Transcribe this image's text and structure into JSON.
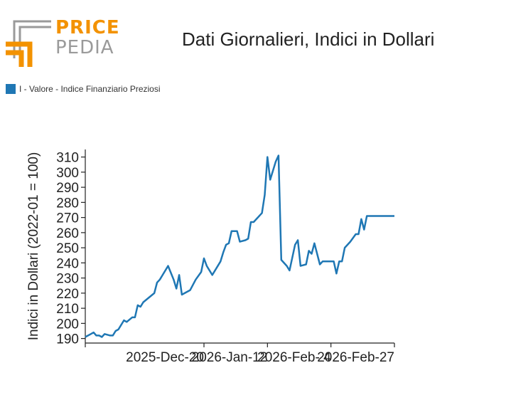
{
  "brand": {
    "word1": "PRICE",
    "word2": "PEDIA",
    "color_orange": "#f39200",
    "color_gray": "#9a9a9a"
  },
  "chart_data": {
    "type": "line",
    "title": "Dati Giornalieri, Indici in Dollari",
    "ylabel": "Indici in Dollari (2022-01 = 100)",
    "xlabel": "",
    "ylim": [
      187,
      315
    ],
    "yticks": [
      190,
      200,
      210,
      220,
      230,
      240,
      250,
      260,
      270,
      280,
      290,
      300,
      310
    ],
    "xlim": [
      "2025-11-07",
      "2026-02-27"
    ],
    "xticks": [
      {
        "date": "2025-12-20",
        "label": "2025-Dec-20"
      },
      {
        "date": "2026-01-12",
        "label": "2026-Jan-12"
      },
      {
        "date": "2026-02-04",
        "label": "2026-Feb- 4"
      },
      {
        "date": "2026-02-27",
        "label": "2026-Feb-27"
      }
    ],
    "legend_position": "top-left",
    "series": [
      {
        "name": "I - Valore - Indice Finanziario Preziosi",
        "color": "#1f77b4",
        "x": [
          "2025-11-07",
          "2025-11-09",
          "2025-11-10",
          "2025-11-11",
          "2025-11-12",
          "2025-11-13",
          "2025-11-14",
          "2025-11-16",
          "2025-11-17",
          "2025-11-18",
          "2025-11-19",
          "2025-11-21",
          "2025-11-22",
          "2025-11-24",
          "2025-11-25",
          "2025-11-26",
          "2025-11-27",
          "2025-11-28",
          "2025-12-02",
          "2025-12-03",
          "2025-12-04",
          "2025-12-05",
          "2025-12-07",
          "2025-12-09",
          "2025-12-10",
          "2025-12-11",
          "2025-12-12",
          "2025-12-15",
          "2025-12-17",
          "2025-12-19",
          "2025-12-20",
          "2025-12-21",
          "2025-12-23",
          "2025-12-26",
          "2025-12-27",
          "2025-12-28",
          "2025-12-29",
          "2025-12-30",
          "2026-01-01",
          "2026-01-02",
          "2026-01-04",
          "2026-01-05",
          "2026-01-06",
          "2026-01-07",
          "2026-01-10",
          "2026-01-11",
          "2026-01-12",
          "2026-01-13",
          "2026-01-15",
          "2026-01-16",
          "2026-01-17",
          "2026-01-19",
          "2026-01-20",
          "2026-01-22",
          "2026-01-23",
          "2026-01-24",
          "2026-01-26",
          "2026-01-27",
          "2026-01-28",
          "2026-01-29",
          "2026-01-31",
          "2026-02-01",
          "2026-02-02",
          "2026-02-03",
          "2026-02-05",
          "2026-02-06",
          "2026-02-07",
          "2026-02-08",
          "2026-02-09",
          "2026-02-11",
          "2026-02-13",
          "2026-02-14",
          "2026-02-15",
          "2026-02-16",
          "2026-02-17",
          "2026-02-18",
          "2026-02-19",
          "2026-02-20",
          "2026-02-21",
          "2026-02-22",
          "2026-02-23",
          "2026-02-24",
          "2026-02-25",
          "2026-02-26",
          "2026-02-27"
        ],
        "values": [
          191,
          193,
          194,
          192,
          192,
          191,
          193,
          192,
          192,
          195,
          196,
          202,
          201,
          204,
          204,
          212,
          211,
          214,
          220,
          227,
          229,
          232,
          238,
          229,
          223,
          232,
          219,
          222,
          229,
          234,
          243,
          238,
          232,
          241,
          247,
          252,
          253,
          261,
          261,
          254,
          255,
          256,
          267,
          267,
          273,
          285,
          310,
          295,
          307,
          311,
          242,
          238,
          235,
          252,
          255,
          238,
          239,
          248,
          246,
          253,
          239,
          241,
          241,
          241,
          241,
          233,
          241,
          241,
          250,
          254,
          259,
          259,
          269,
          262,
          271,
          271,
          271,
          271,
          271,
          271,
          271,
          271,
          271,
          271,
          271
        ]
      }
    ]
  }
}
